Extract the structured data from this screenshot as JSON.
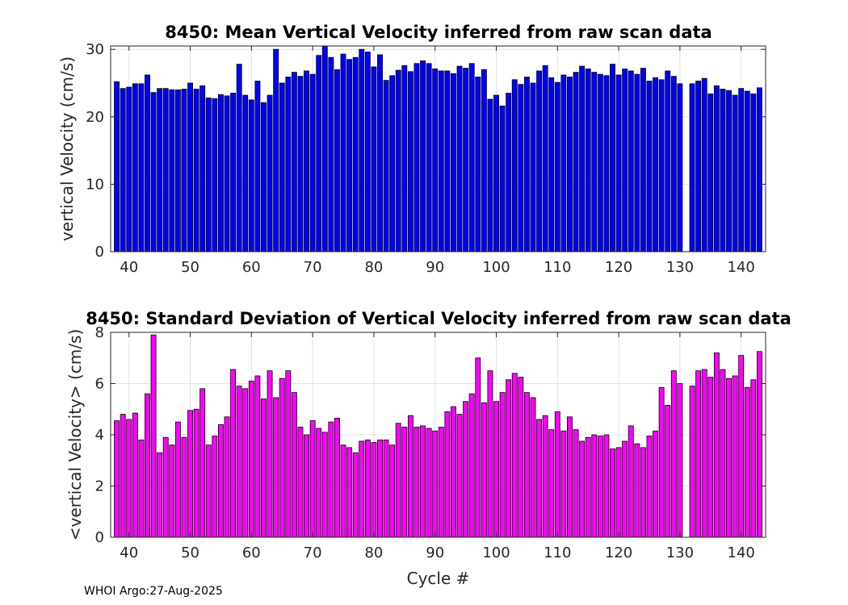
{
  "footer": "WHOI Argo:27-Aug-2025",
  "chart_data": [
    {
      "type": "bar",
      "title": "8450: Mean Vertical Velocity inferred from raw scan data",
      "xlabel": "",
      "ylabel": "vertical Velocity (cm/s)",
      "xlim": [
        37,
        144
      ],
      "ylim": [
        0,
        30.5
      ],
      "xticks": [
        40,
        50,
        60,
        70,
        80,
        90,
        100,
        110,
        120,
        130,
        140
      ],
      "yticks": [
        0,
        10,
        20,
        30
      ],
      "bar_color": "#0000ff",
      "grid": true,
      "cycles": [
        38,
        39,
        40,
        41,
        42,
        43,
        44,
        45,
        46,
        47,
        48,
        49,
        50,
        51,
        52,
        53,
        54,
        55,
        56,
        57,
        58,
        59,
        60,
        61,
        62,
        63,
        64,
        65,
        66,
        67,
        68,
        69,
        70,
        71,
        72,
        73,
        74,
        75,
        76,
        77,
        78,
        79,
        80,
        81,
        82,
        83,
        84,
        85,
        86,
        87,
        88,
        89,
        90,
        91,
        92,
        93,
        94,
        95,
        96,
        97,
        98,
        99,
        100,
        101,
        102,
        103,
        104,
        105,
        106,
        107,
        108,
        109,
        110,
        111,
        112,
        113,
        114,
        115,
        116,
        117,
        118,
        119,
        120,
        121,
        122,
        123,
        124,
        125,
        126,
        127,
        128,
        129,
        130,
        132,
        133,
        134,
        135,
        136,
        137,
        138,
        139,
        140,
        141,
        142,
        143
      ],
      "values": [
        25.2,
        24.2,
        24.4,
        24.9,
        24.9,
        26.2,
        23.6,
        24.2,
        24.2,
        24.0,
        24.0,
        24.1,
        25.0,
        24.1,
        24.6,
        22.8,
        22.7,
        23.3,
        23.1,
        23.5,
        27.8,
        23.2,
        22.5,
        25.3,
        22.1,
        23.2,
        30.0,
        25.0,
        25.9,
        26.6,
        26.0,
        26.8,
        26.3,
        29.1,
        30.5,
        28.8,
        27.0,
        29.3,
        28.5,
        28.8,
        30.0,
        29.6,
        27.4,
        29.2,
        25.4,
        26.1,
        26.9,
        27.6,
        26.7,
        27.9,
        28.3,
        27.9,
        27.1,
        26.8,
        26.8,
        26.4,
        27.5,
        27.2,
        27.9,
        25.9,
        27.0,
        22.6,
        23.2,
        21.6,
        23.5,
        25.5,
        24.8,
        25.9,
        25.0,
        26.8,
        27.6,
        25.8,
        25.1,
        26.2,
        25.9,
        26.6,
        27.5,
        27.1,
        26.6,
        26.3,
        26.1,
        27.8,
        26.2,
        27.1,
        26.8,
        26.3,
        27.2,
        25.3,
        25.8,
        25.5,
        26.8,
        26.0,
        24.9,
        24.9,
        25.3,
        25.7,
        23.4,
        24.6,
        24.1,
        23.9,
        23.2,
        24.2,
        23.8,
        23.4,
        24.3
      ]
    },
    {
      "type": "bar",
      "title": "8450: Standard Deviation of Vertical Velocity inferred from raw scan data",
      "xlabel": "Cycle #",
      "ylabel": "<vertical Velocity> (cm/s)",
      "xlim": [
        37,
        144
      ],
      "ylim": [
        0,
        8
      ],
      "xticks": [
        40,
        50,
        60,
        70,
        80,
        90,
        100,
        110,
        120,
        130,
        140
      ],
      "yticks": [
        0,
        2,
        4,
        6,
        8
      ],
      "bar_color": "#ff00ff",
      "grid": true,
      "cycles": [
        38,
        39,
        40,
        41,
        42,
        43,
        44,
        45,
        46,
        47,
        48,
        49,
        50,
        51,
        52,
        53,
        54,
        55,
        56,
        57,
        58,
        59,
        60,
        61,
        62,
        63,
        64,
        65,
        66,
        67,
        68,
        69,
        70,
        71,
        72,
        73,
        74,
        75,
        76,
        77,
        78,
        79,
        80,
        81,
        82,
        83,
        84,
        85,
        86,
        87,
        88,
        89,
        90,
        91,
        92,
        93,
        94,
        95,
        96,
        97,
        98,
        99,
        100,
        101,
        102,
        103,
        104,
        105,
        106,
        107,
        108,
        109,
        110,
        111,
        112,
        113,
        114,
        115,
        116,
        117,
        118,
        119,
        120,
        121,
        122,
        123,
        124,
        125,
        126,
        127,
        128,
        129,
        130,
        132,
        133,
        134,
        135,
        136,
        137,
        138,
        139,
        140,
        141,
        142,
        143
      ],
      "values": [
        4.55,
        4.8,
        4.6,
        4.85,
        3.8,
        5.6,
        7.9,
        3.3,
        3.9,
        3.6,
        4.5,
        3.9,
        4.95,
        5.0,
        5.8,
        3.6,
        3.95,
        4.4,
        4.7,
        6.55,
        5.9,
        5.8,
        6.1,
        6.3,
        5.4,
        6.5,
        5.45,
        6.2,
        6.5,
        5.65,
        4.3,
        4.0,
        4.55,
        4.25,
        4.1,
        4.5,
        4.65,
        3.6,
        3.5,
        3.3,
        3.75,
        3.8,
        3.7,
        3.8,
        3.8,
        3.6,
        4.45,
        4.3,
        4.75,
        4.3,
        4.35,
        4.25,
        4.15,
        4.3,
        4.9,
        5.1,
        4.8,
        5.3,
        5.6,
        7.0,
        5.25,
        6.5,
        5.3,
        5.65,
        6.15,
        6.4,
        6.25,
        5.65,
        5.45,
        4.6,
        4.75,
        4.2,
        4.9,
        4.15,
        4.7,
        4.2,
        3.75,
        3.9,
        4.0,
        3.95,
        4.0,
        3.45,
        3.5,
        3.75,
        4.35,
        3.65,
        3.5,
        3.95,
        4.15,
        5.85,
        5.15,
        6.5,
        6.0,
        5.9,
        6.5,
        6.55,
        6.25,
        7.2,
        6.55,
        6.2,
        6.3,
        7.1,
        5.85,
        6.15,
        7.25
      ]
    }
  ]
}
